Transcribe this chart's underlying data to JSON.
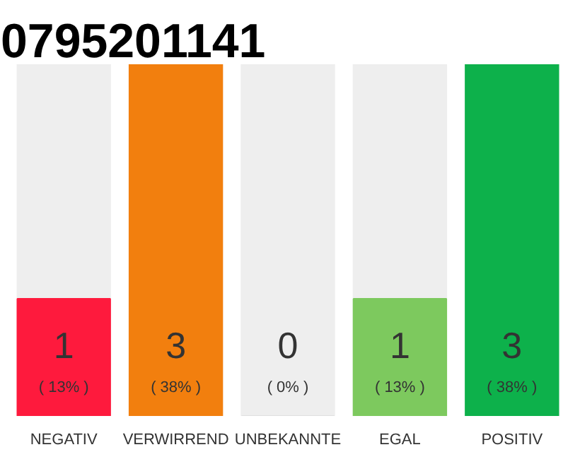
{
  "chart_data": {
    "type": "bar",
    "title": "0795201141",
    "categories": [
      "NEGATIV",
      "VERWIRREND",
      "UNBEKANNTE",
      "EGAL",
      "POSITIV"
    ],
    "values": [
      1,
      3,
      0,
      1,
      3
    ],
    "colors": [
      "#fe1a3d",
      "#f27f0e",
      "#e0e0e0",
      "#7dc95e",
      "#0db14b"
    ],
    "value_labels": [
      "1",
      "3",
      "0",
      "1",
      "3"
    ],
    "annotations": [
      "( 13% )",
      "( 38% )",
      "( 0% )",
      "( 13% )",
      "( 38% )"
    ],
    "tick_labels": "x",
    "grid": false
  }
}
